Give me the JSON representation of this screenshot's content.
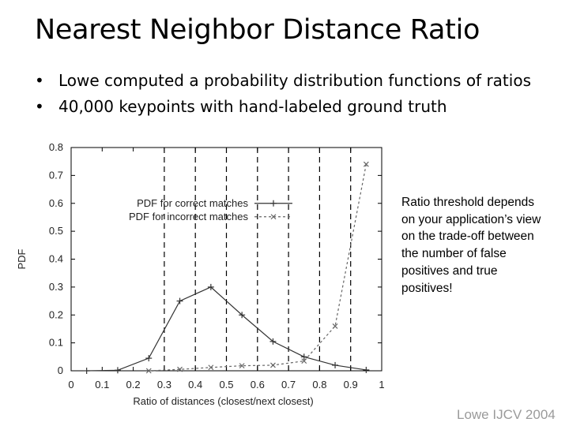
{
  "slide": {
    "title": "Nearest Neighbor Distance Ratio",
    "bullets": [
      "Lowe computed a probability distribution functions of ratios",
      "40,000 keypoints with hand-labeled ground truth"
    ],
    "note": "Ratio threshold depends on your application’s view on the trade-off between the number of false positives and true positives!",
    "credit": "Lowe IJCV 2004"
  },
  "chart_data": {
    "type": "line",
    "xlabel": "Ratio of distances (closest/next closest)",
    "ylabel": "PDF",
    "xlim": [
      0,
      1
    ],
    "ylim": [
      0,
      0.8
    ],
    "xticks": [
      "0",
      "0.1",
      "0.2",
      "0.3",
      "0.4",
      "0.5",
      "0.6",
      "0.7",
      "0.8",
      "0.9",
      "1"
    ],
    "yticks": [
      "0",
      "0.1",
      "0.2",
      "0.3",
      "0.4",
      "0.5",
      "0.6",
      "0.7",
      "0.8"
    ],
    "vertical_grid_x": [
      0.3,
      0.4,
      0.5,
      0.6,
      0.7,
      0.8,
      0.9
    ],
    "legend_position": "upper-left",
    "series": [
      {
        "name": "PDF for correct matches",
        "style": "solid",
        "marker": "+",
        "color": "#333333",
        "x": [
          0.05,
          0.15,
          0.25,
          0.35,
          0.45,
          0.55,
          0.65,
          0.75,
          0.85,
          0.95
        ],
        "y": [
          0.0,
          0.002,
          0.045,
          0.25,
          0.3,
          0.2,
          0.105,
          0.05,
          0.02,
          0.003
        ]
      },
      {
        "name": "PDF for incorrect matches",
        "style": "dashed",
        "marker": "x",
        "color": "#666666",
        "x": [
          0.25,
          0.35,
          0.45,
          0.55,
          0.65,
          0.75,
          0.85,
          0.95
        ],
        "y": [
          0.0,
          0.005,
          0.012,
          0.018,
          0.02,
          0.035,
          0.16,
          0.74
        ]
      }
    ]
  }
}
